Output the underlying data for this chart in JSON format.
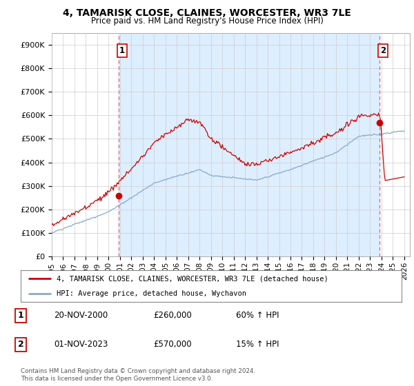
{
  "title": "4, TAMARISK CLOSE, CLAINES, WORCESTER, WR3 7LE",
  "subtitle": "Price paid vs. HM Land Registry's House Price Index (HPI)",
  "ylim": [
    0,
    950000
  ],
  "xlim_start": 1995.0,
  "xlim_end": 2026.5,
  "yticks": [
    0,
    100000,
    200000,
    300000,
    400000,
    500000,
    600000,
    700000,
    800000,
    900000
  ],
  "ytick_labels": [
    "£0",
    "£100K",
    "£200K",
    "£300K",
    "£400K",
    "£500K",
    "£600K",
    "£700K",
    "£800K",
    "£900K"
  ],
  "xticks": [
    1995,
    1996,
    1997,
    1998,
    1999,
    2000,
    2001,
    2002,
    2003,
    2004,
    2005,
    2006,
    2007,
    2008,
    2009,
    2010,
    2011,
    2012,
    2013,
    2014,
    2015,
    2016,
    2017,
    2018,
    2019,
    2020,
    2021,
    2022,
    2023,
    2024,
    2025,
    2026
  ],
  "sale1_x": 2000.88,
  "sale1_y": 260000,
  "sale2_x": 2023.84,
  "sale2_y": 570000,
  "sale1_label": "1",
  "sale2_label": "2",
  "sale1_date": "20-NOV-2000",
  "sale1_price": "£260,000",
  "sale1_hpi": "60% ↑ HPI",
  "sale2_date": "01-NOV-2023",
  "sale2_price": "£570,000",
  "sale2_hpi": "15% ↑ HPI",
  "legend_line1": "4, TAMARISK CLOSE, CLAINES, WORCESTER, WR3 7LE (detached house)",
  "legend_line2": "HPI: Average price, detached house, Wychavon",
  "footer1": "Contains HM Land Registry data © Crown copyright and database right 2024.",
  "footer2": "This data is licensed under the Open Government Licence v3.0.",
  "property_color": "#cc0000",
  "hpi_color": "#88aacc",
  "vline_color": "#dd6666",
  "shade_color": "#ddeeff",
  "bg_color": "#ffffff",
  "grid_color": "#cccccc"
}
